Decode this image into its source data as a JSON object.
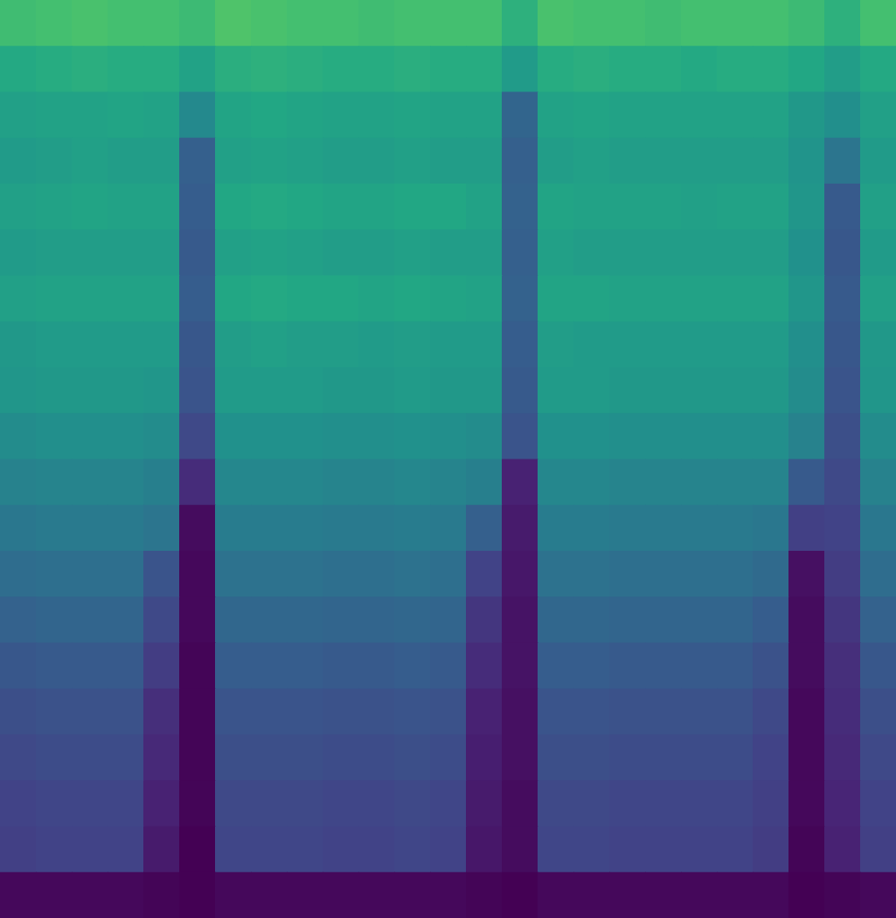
{
  "chart_data": {
    "type": "heatmap",
    "tick_labels": false,
    "cells": [
      [
        69,
        70,
        71,
        70,
        70,
        68,
        72,
        71,
        70,
        70,
        69,
        70,
        70,
        70,
        64,
        71,
        70,
        70,
        69,
        70,
        70,
        70,
        68,
        64,
        70
      ],
      [
        61,
        62,
        63,
        62,
        62,
        58,
        63,
        64,
        63,
        62,
        62,
        63,
        62,
        62,
        55,
        62,
        63,
        62,
        62,
        61,
        62,
        62,
        60,
        56,
        61
      ],
      [
        57,
        58,
        58,
        59,
        58,
        48,
        59,
        60,
        59,
        58,
        58,
        59,
        58,
        58,
        34,
        58,
        59,
        58,
        58,
        58,
        58,
        58,
        54,
        50,
        57
      ],
      [
        55,
        56,
        57,
        56,
        56,
        32,
        57,
        58,
        57,
        56,
        56,
        57,
        56,
        56,
        32,
        56,
        57,
        56,
        56,
        56,
        56,
        56,
        52,
        40,
        55
      ],
      [
        57,
        58,
        59,
        58,
        58,
        31,
        60,
        61,
        60,
        59,
        59,
        60,
        60,
        58,
        33,
        59,
        58,
        58,
        58,
        57,
        58,
        58,
        53,
        30,
        57
      ],
      [
        55,
        56,
        56,
        56,
        56,
        30,
        57,
        58,
        57,
        56,
        56,
        57,
        56,
        56,
        32,
        57,
        56,
        56,
        56,
        56,
        56,
        56,
        51,
        29,
        55
      ],
      [
        57,
        58,
        58,
        58,
        58,
        31,
        60,
        61,
        60,
        60,
        59,
        60,
        59,
        58,
        33,
        59,
        59,
        58,
        58,
        58,
        58,
        58,
        53,
        30,
        57
      ],
      [
        54,
        55,
        55,
        55,
        55,
        29,
        56,
        57,
        56,
        56,
        55,
        56,
        55,
        55,
        31,
        56,
        55,
        55,
        55,
        55,
        55,
        55,
        50,
        29,
        54
      ],
      [
        53,
        54,
        54,
        54,
        53,
        28,
        55,
        55,
        55,
        54,
        54,
        55,
        54,
        54,
        30,
        55,
        55,
        54,
        54,
        54,
        54,
        54,
        49,
        28,
        53
      ],
      [
        49,
        50,
        50,
        50,
        49,
        24,
        51,
        51,
        51,
        50,
        50,
        51,
        50,
        49,
        28,
        51,
        51,
        50,
        50,
        50,
        50,
        50,
        45,
        26,
        49
      ],
      [
        45,
        46,
        46,
        46,
        44,
        15,
        47,
        47,
        47,
        46,
        46,
        47,
        46,
        44,
        12,
        47,
        47,
        46,
        46,
        46,
        46,
        46,
        30,
        24,
        45
      ],
      [
        41,
        42,
        42,
        42,
        40,
        6,
        43,
        43,
        43,
        42,
        42,
        43,
        42,
        32,
        10,
        43,
        43,
        42,
        42,
        42,
        42,
        41,
        21,
        22,
        41
      ],
      [
        37,
        38,
        38,
        38,
        28,
        5,
        39,
        39,
        39,
        38,
        38,
        39,
        38,
        22,
        9,
        39,
        39,
        38,
        38,
        38,
        38,
        36,
        7,
        20,
        37
      ],
      [
        33,
        34,
        34,
        34,
        24,
        5,
        35,
        35,
        35,
        34,
        34,
        35,
        34,
        18,
        8,
        35,
        35,
        34,
        34,
        34,
        34,
        31,
        6,
        18,
        33
      ],
      [
        29,
        30,
        30,
        30,
        20,
        4,
        31,
        31,
        31,
        30,
        30,
        31,
        30,
        15,
        8,
        31,
        31,
        30,
        30,
        30,
        30,
        27,
        6,
        16,
        29
      ],
      [
        26,
        27,
        27,
        27,
        16,
        4,
        28,
        28,
        28,
        27,
        27,
        28,
        27,
        12,
        7,
        28,
        28,
        27,
        27,
        27,
        27,
        24,
        5,
        15,
        26
      ],
      [
        24,
        25,
        25,
        25,
        14,
        4,
        26,
        26,
        26,
        25,
        25,
        26,
        25,
        11,
        7,
        26,
        26,
        25,
        25,
        25,
        25,
        22,
        5,
        14,
        24
      ],
      [
        22,
        23,
        23,
        23,
        12,
        4,
        24,
        24,
        24,
        23,
        23,
        24,
        23,
        10,
        6,
        24,
        24,
        23,
        23,
        23,
        23,
        21,
        5,
        13,
        22
      ],
      [
        21,
        22,
        22,
        22,
        10,
        3,
        23,
        23,
        23,
        22,
        22,
        23,
        22,
        9,
        6,
        23,
        23,
        22,
        22,
        22,
        22,
        20,
        4,
        12,
        21
      ],
      [
        5,
        5,
        5,
        5,
        4,
        3,
        5,
        5,
        5,
        5,
        5,
        5,
        5,
        4,
        3,
        5,
        5,
        5,
        5,
        5,
        5,
        5,
        3,
        4,
        5
      ]
    ]
  }
}
